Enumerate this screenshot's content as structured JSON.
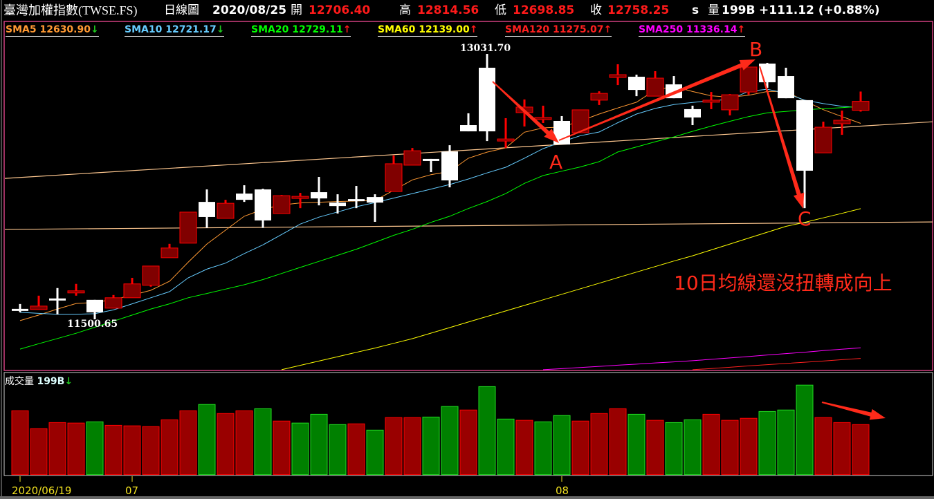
{
  "header": {
    "name": "臺灣加權指數(TWSE.FS)",
    "period": "日線圖",
    "date": "2020/08/25",
    "open_label": "開",
    "open": "12706.40",
    "high_label": "高",
    "high": "12814.56",
    "low_label": "低",
    "low": "12698.85",
    "close_label": "收",
    "close": "12758.25",
    "close_suffix": "s",
    "volume_label": "量",
    "volume": "199B",
    "change": "+111.12 (+0.88%)"
  },
  "legend": [
    {
      "name": "SMA5",
      "value": "12630.90",
      "arrow": "↓",
      "color": "#ff9933"
    },
    {
      "name": "SMA10",
      "value": "12721.17",
      "arrow": "↓",
      "color": "#66ccff"
    },
    {
      "name": "SMA20",
      "value": "12729.11",
      "arrow": "↑",
      "color": "#00ff00"
    },
    {
      "name": "SMA60",
      "value": "12139.00",
      "arrow": "↑",
      "color": "#ffff00"
    },
    {
      "name": "SMA120",
      "value": "11275.07",
      "arrow": "↑",
      "color": "#ff2020"
    },
    {
      "name": "SMA250",
      "value": "11336.14",
      "arrow": "↑",
      "color": "#ff00ff"
    }
  ],
  "volume_panel": {
    "label": "成交量",
    "value": "199B",
    "arrow": "↓"
  },
  "annotations": {
    "a": "A",
    "b": "B",
    "c": "C",
    "note": "10日均線還沒扭轉成向上",
    "color": "#ff2a1a"
  },
  "colors": {
    "up_fill": "#800000",
    "up_border": "#ff0000",
    "down": "#ffffff",
    "vol_up": "#990000",
    "vol_down": "#008000",
    "vol_down_border": "#22dd22",
    "trendline": "#ffc890",
    "frame": "#d04080"
  },
  "chart_data": {
    "type": "candlestick",
    "x_tick_labels": [
      {
        "date": "2020/06/19",
        "label": "2020/06/19"
      },
      {
        "date": "2020/07/01",
        "label": "07"
      },
      {
        "date": "2020/08/03",
        "label": "08"
      }
    ],
    "high_label": "13031.70",
    "low_label": "11500.65",
    "ylim": [
      11210,
      13140
    ],
    "dates": [
      "2020/06/19",
      "2020/06/22",
      "2020/06/23",
      "2020/06/24",
      "2020/06/29",
      "2020/06/30",
      "2020/07/01",
      "2020/07/02",
      "2020/07/03",
      "2020/07/06",
      "2020/07/07",
      "2020/07/08",
      "2020/07/09",
      "2020/07/10",
      "2020/07/13",
      "2020/07/14",
      "2020/07/15",
      "2020/07/16",
      "2020/07/17",
      "2020/07/20",
      "2020/07/21",
      "2020/07/22",
      "2020/07/23",
      "2020/07/24",
      "2020/07/27",
      "2020/07/28",
      "2020/07/29",
      "2020/07/30",
      "2020/07/31",
      "2020/08/03",
      "2020/08/04",
      "2020/08/05",
      "2020/08/06",
      "2020/08/07",
      "2020/08/10",
      "2020/08/11",
      "2020/08/12",
      "2020/08/13",
      "2020/08/14",
      "2020/08/17",
      "2020/08/18",
      "2020/08/19",
      "2020/08/20",
      "2020/08/21",
      "2020/08/24",
      "2020/08/25"
    ],
    "ohlc": [
      [
        11561,
        11589,
        11541,
        11553
      ],
      [
        11557,
        11637,
        11557,
        11577
      ],
      [
        11621,
        11681,
        11529,
        11613
      ],
      [
        11653,
        11705,
        11637,
        11665
      ],
      [
        11613,
        11613,
        11500.65,
        11541
      ],
      [
        11565,
        11641,
        11565,
        11625
      ],
      [
        11625,
        11740,
        11625,
        11705
      ],
      [
        11697,
        11808,
        11689,
        11808
      ],
      [
        11856,
        11936,
        11856,
        11912
      ],
      [
        11940,
        12119,
        11940,
        12119
      ],
      [
        12178,
        12250,
        12028,
        12091
      ],
      [
        12083,
        12190,
        12083,
        12170
      ],
      [
        12226,
        12274,
        12178,
        12190
      ],
      [
        12250,
        12254,
        12028,
        12071
      ],
      [
        12111,
        12218,
        12111,
        12214
      ],
      [
        12202,
        12230,
        12142,
        12210
      ],
      [
        12234,
        12322,
        12158,
        12198
      ],
      [
        12174,
        12222,
        12111,
        12154
      ],
      [
        12194,
        12270,
        12142,
        12186
      ],
      [
        12206,
        12222,
        12063,
        12174
      ],
      [
        12238,
        12446,
        12238,
        12398
      ],
      [
        12390,
        12489,
        12390,
        12473
      ],
      [
        12426,
        12426,
        12350,
        12414
      ],
      [
        12469,
        12505,
        12262,
        12302
      ],
      [
        12621,
        12689,
        12585,
        12585
      ],
      [
        12952,
        13031.7,
        12529,
        12585
      ],
      [
        12529,
        12661,
        12489,
        12541
      ],
      [
        12693,
        12769,
        12613,
        12725
      ],
      [
        12653,
        12733,
        12633,
        12665
      ],
      [
        12645,
        12673,
        12509,
        12509
      ],
      [
        12577,
        12709,
        12577,
        12709
      ],
      [
        12765,
        12816,
        12737,
        12804
      ],
      [
        12896,
        12972,
        12852,
        12912
      ],
      [
        12900,
        12912,
        12788,
        12824
      ],
      [
        12788,
        12932,
        12788,
        12892
      ],
      [
        12856,
        12904,
        12776,
        12776
      ],
      [
        12713,
        12733,
        12621,
        12665
      ],
      [
        12757,
        12812,
        12713,
        12765
      ],
      [
        12709,
        12800,
        12677,
        12796
      ],
      [
        12812,
        12956,
        12796,
        12956
      ],
      [
        12976,
        12980,
        12836,
        12868
      ],
      [
        12904,
        12952,
        12776,
        12776
      ],
      [
        12765,
        12765,
        12142,
        12358
      ],
      [
        12461,
        12641,
        12461,
        12609
      ],
      [
        12629,
        12705,
        12565,
        12649
      ],
      [
        12706.4,
        12814.56,
        12698.85,
        12758.25
      ]
    ],
    "volume_unit": "B",
    "volume": [
      254,
      183,
      207,
      205,
      210,
      196,
      194,
      191,
      218,
      254,
      279,
      243,
      254,
      262,
      213,
      205,
      240,
      199,
      202,
      177,
      227,
      227,
      229,
      271,
      257,
      350,
      221,
      216,
      210,
      235,
      213,
      243,
      262,
      240,
      216,
      207,
      218,
      240,
      216,
      224,
      251,
      257,
      356,
      227,
      207,
      199
    ],
    "volume_direction": [
      "up",
      "up",
      "up",
      "up",
      "down",
      "up",
      "up",
      "up",
      "up",
      "up",
      "down",
      "up",
      "up",
      "down",
      "up",
      "down",
      "down",
      "down",
      "up",
      "down",
      "up",
      "up",
      "down",
      "down",
      "up",
      "down",
      "down",
      "up",
      "down",
      "down",
      "up",
      "up",
      "up",
      "down",
      "up",
      "down",
      "down",
      "up",
      "up",
      "up",
      "down",
      "down",
      "down",
      "up",
      "up",
      "up"
    ],
    "series": [
      {
        "name": "SMA5",
        "color": "#ff9933",
        "values": [
          11493,
          11525,
          11560,
          11592,
          11598,
          11615,
          11640,
          11668,
          11720,
          11830,
          11935,
          12015,
          12095,
          12135,
          12160,
          12172,
          12176,
          12180,
          12183,
          12186,
          12245,
          12305,
          12335,
          12354,
          12430,
          12465,
          12490,
          12580,
          12605,
          12610,
          12645,
          12685,
          12720,
          12753,
          12824,
          12844,
          12815,
          12790,
          12782,
          12793,
          12815,
          12815,
          12761,
          12710,
          12670,
          12630.9
        ]
      },
      {
        "name": "SMA10",
        "color": "#66ccff",
        "values": [
          11541,
          11535,
          11530,
          11530,
          11533,
          11555,
          11590,
          11625,
          11660,
          11740,
          11790,
          11825,
          11880,
          11930,
          11990,
          12050,
          12090,
          12120,
          12150,
          12174,
          12200,
          12226,
          12252,
          12278,
          12310,
          12345,
          12378,
          12430,
          12485,
          12525,
          12560,
          12581,
          12635,
          12685,
          12717,
          12740,
          12752,
          12762,
          12769,
          12816,
          12828,
          12805,
          12765,
          12745,
          12730,
          12721.17
        ]
      },
      {
        "name": "SMA20",
        "color": "#00ff00",
        "values": [
          11329,
          11360,
          11390,
          11420,
          11455,
          11490,
          11525,
          11560,
          11590,
          11625,
          11650,
          11675,
          11700,
          11730,
          11765,
          11800,
          11835,
          11870,
          11905,
          11945,
          11985,
          12020,
          12060,
          12095,
          12140,
          12180,
          12226,
          12285,
          12330,
          12355,
          12380,
          12410,
          12466,
          12495,
          12525,
          12553,
          12585,
          12615,
          12643,
          12670,
          12692,
          12700,
          12709,
          12716,
          12722,
          12729.11
        ]
      },
      {
        "name": "SMA60",
        "color": "#ffff00",
        "values": [
          null,
          null,
          null,
          null,
          null,
          null,
          null,
          null,
          null,
          null,
          null,
          null,
          null,
          null,
          11210,
          11235,
          11260,
          11285,
          11310,
          11335,
          11362,
          11389,
          11421,
          11453,
          11485,
          11517,
          11549,
          11581,
          11613,
          11645,
          11677,
          11709,
          11741,
          11773,
          11805,
          11837,
          11867,
          11901,
          11935,
          11969,
          12003,
          12037,
          12060,
          12086,
          12112,
          12139.0
        ]
      },
      {
        "name": "SMA120",
        "color": "#ff2020",
        "values": [
          null,
          null,
          null,
          null,
          null,
          null,
          null,
          null,
          null,
          null,
          null,
          null,
          null,
          null,
          null,
          null,
          null,
          null,
          null,
          null,
          null,
          null,
          null,
          null,
          null,
          null,
          null,
          null,
          null,
          null,
          null,
          null,
          null,
          null,
          null,
          null,
          11210,
          11217,
          11224,
          11232,
          11239,
          11246,
          11253,
          11260,
          11268,
          11275.07
        ]
      },
      {
        "name": "SMA250",
        "color": "#ff00ff",
        "values": [
          null,
          null,
          null,
          null,
          null,
          null,
          null,
          null,
          null,
          null,
          null,
          null,
          null,
          null,
          null,
          null,
          null,
          null,
          null,
          null,
          null,
          null,
          null,
          null,
          null,
          null,
          null,
          null,
          11210,
          11216,
          11223,
          11229,
          11236,
          11242,
          11249,
          11255,
          11262,
          11270,
          11278,
          11286,
          11295,
          11303,
          11311,
          11320,
          11328,
          11336.14
        ]
      }
    ],
    "trendlines": [
      {
        "from": [
          "2020/06/19",
          12319
        ],
        "to": [
          "2020/08/25",
          12615
        ]
      },
      {
        "from": [
          "2020/06/19",
          12020
        ],
        "to": [
          "2020/08/25",
          12059
        ]
      }
    ]
  }
}
